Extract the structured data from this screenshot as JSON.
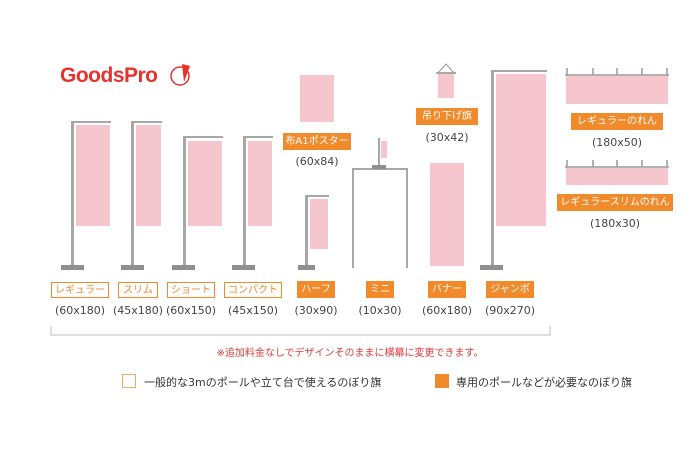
{
  "logo": {
    "text": "GoodsPro"
  },
  "flags": [
    {
      "name": "レギュラー",
      "size": "(60x180)"
    },
    {
      "name": "スリム",
      "size": "(45x180)"
    },
    {
      "name": "ショート",
      "size": "(60x150)"
    },
    {
      "name": "コンパクト",
      "size": "(45x150)"
    },
    {
      "name": "ハーフ",
      "size": "(30x90)"
    },
    {
      "name": "ミニ",
      "size": "(10x30)"
    },
    {
      "name": "バナー",
      "size": "(60x180)"
    },
    {
      "name": "ジャンボ",
      "size": "(90x270)"
    }
  ],
  "poster": {
    "name": "布A1ポスター",
    "size": "(60x84)"
  },
  "hanging": {
    "name": "吊り下げ旗",
    "size": "(30x42)"
  },
  "noren": {
    "name": "レギュラーのれん",
    "size": "(180x50)"
  },
  "noren_slim": {
    "name": "レギュラースリムのれん",
    "size": "(180x30)"
  },
  "note": "※追加料金なしでデザインそのままに横幕に変更できます。",
  "legend": {
    "outline_text": "一般的な3mのポールや立て台で使えるのぼり旗",
    "filled_text": "専用のポールなどが必要なのぼり旗"
  }
}
